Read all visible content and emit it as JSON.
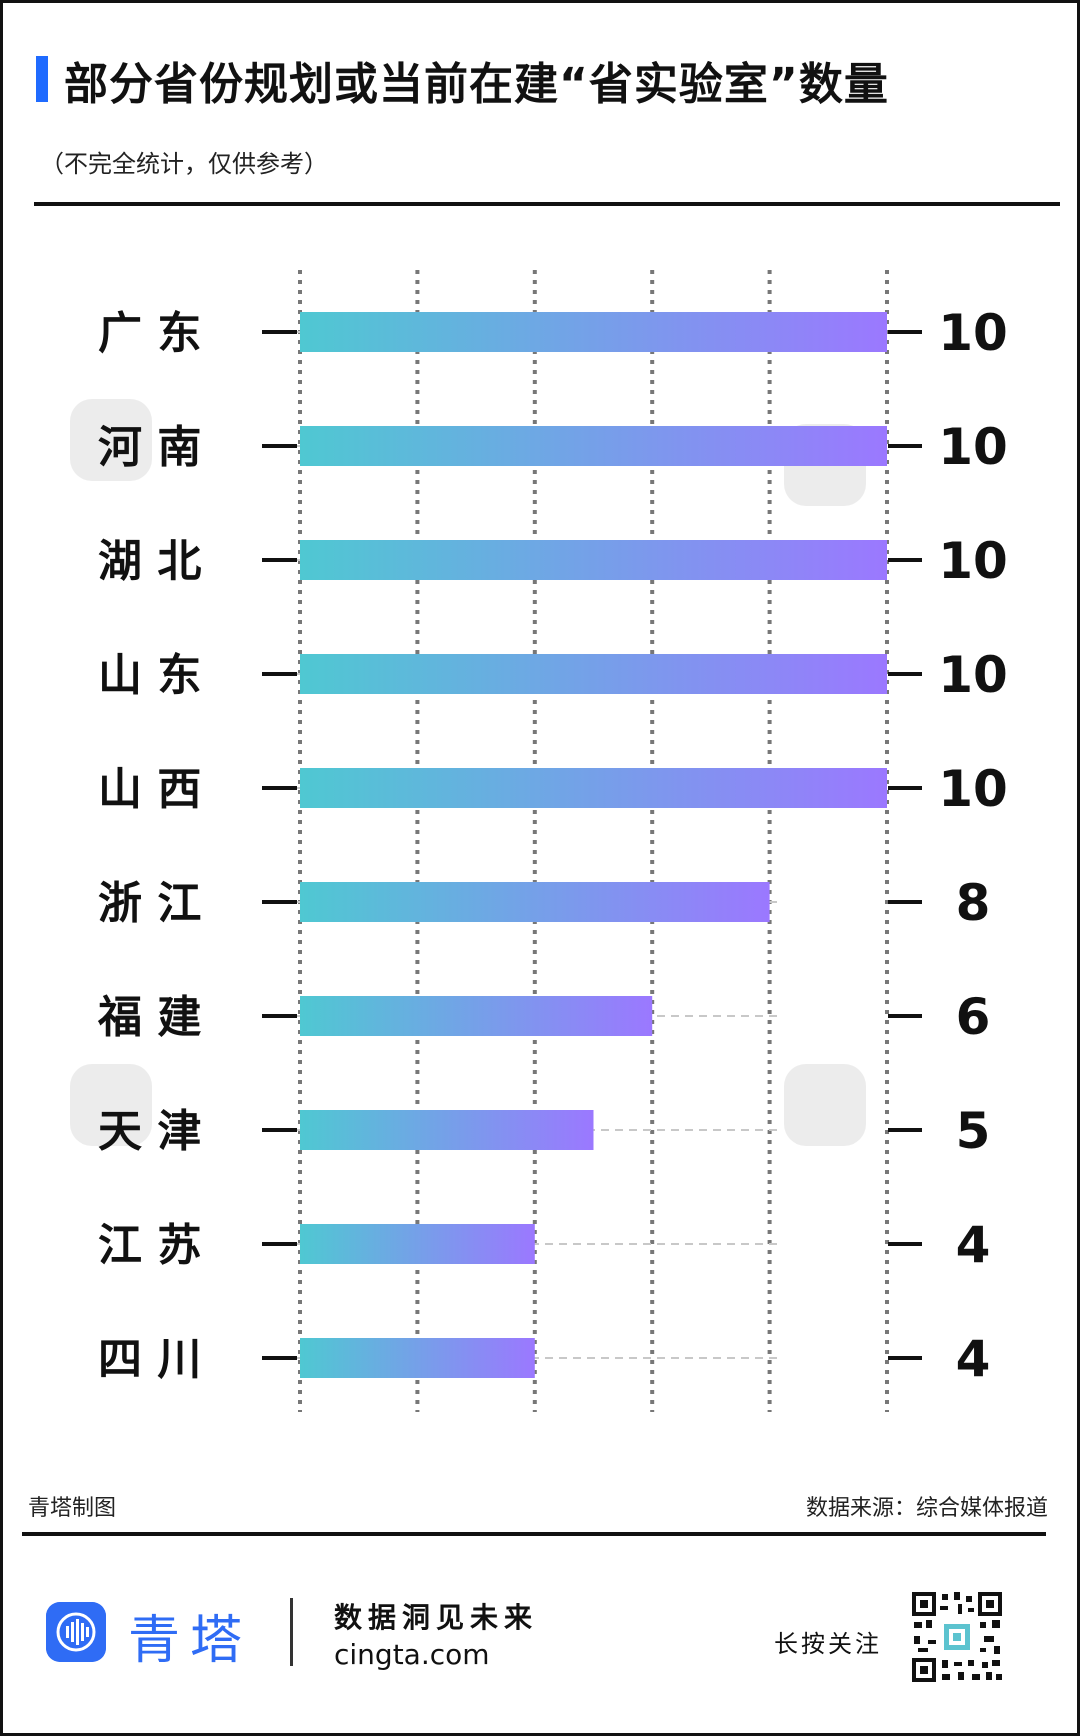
{
  "header": {
    "title": "部分省份规划或当前在建“省实验室”数量",
    "subtitle": "（不完全统计，仅供参考）"
  },
  "footer": {
    "credit": "青塔制图",
    "source": "数据来源：综合媒体报道",
    "brand_name": "青塔",
    "slogan": "数据洞见未来",
    "site": "cingta.com",
    "follow_label": "长按关注"
  },
  "colors": {
    "accent": "#1f6bff",
    "bar_start": "#4fc8d2",
    "bar_end": "#9b78ff",
    "brand": "#2f6cf5"
  },
  "icons": {
    "logo": "cingta-logo-icon",
    "qr": "qr-code-icon",
    "watermark": "cingta-watermark-icon"
  },
  "chart_data": {
    "type": "bar",
    "orientation": "horizontal",
    "categories": [
      "广 东",
      "河 南",
      "湖 北",
      "山 东",
      "山 西",
      "浙 江",
      "福 建",
      "天 津",
      "江 苏",
      "四 川"
    ],
    "values": [
      10,
      10,
      10,
      10,
      10,
      8,
      6,
      5,
      4,
      4
    ],
    "xlim": [
      0,
      10
    ],
    "grid": true,
    "legend": "none"
  }
}
